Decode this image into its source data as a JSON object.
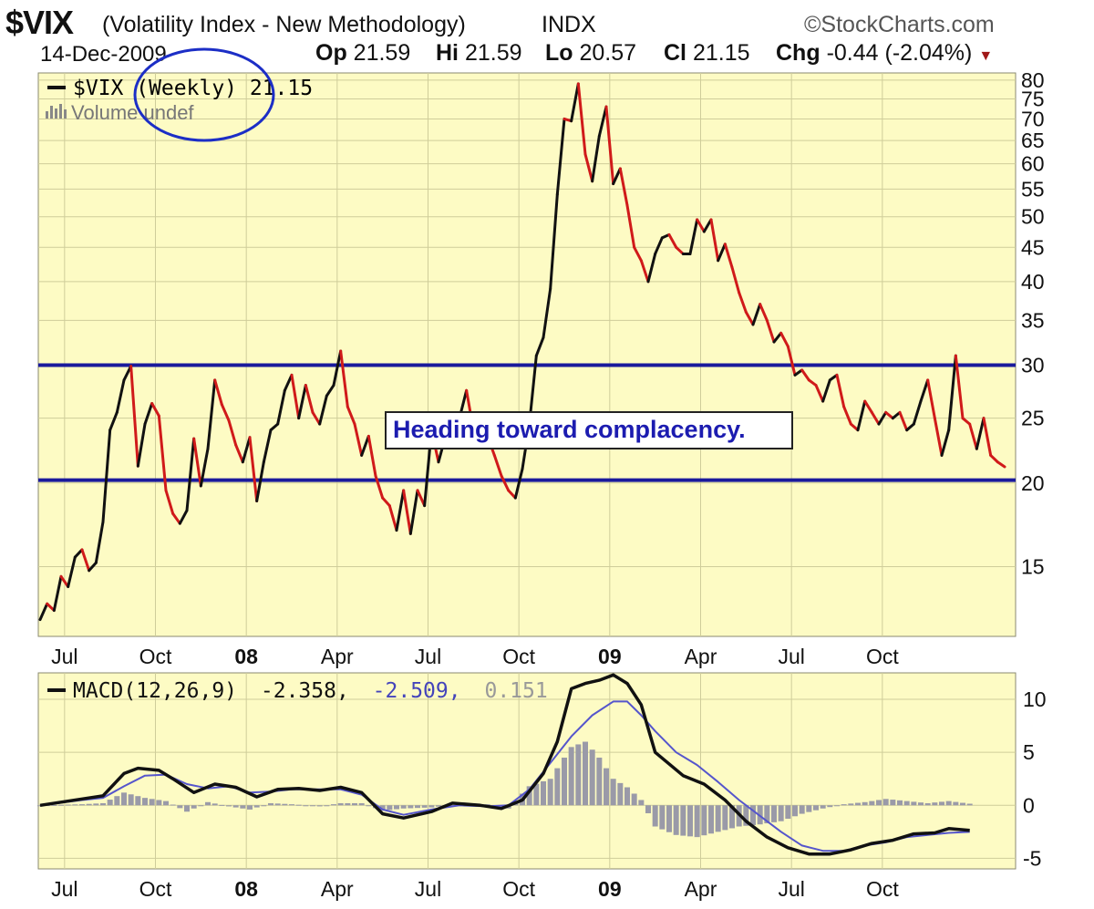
{
  "header": {
    "symbol": "$VIX",
    "full_name": "(Volatility Index - New Methodology)",
    "exchange": "INDX",
    "brand": "©StockCharts.com",
    "date": "14-Dec-2009",
    "open_label": "Op",
    "open_value": "21.59",
    "high_label": "Hi",
    "high_value": "21.59",
    "low_label": "Lo",
    "low_value": "20.57",
    "close_label": "Cl",
    "close_value": "21.15",
    "change_label": "Chg",
    "change_value": "-0.44 (-2.04%)",
    "change_arrow": "▼"
  },
  "colors": {
    "panel_bg": "#fdfbc4",
    "grid": "#cfcd9a",
    "up_line": "#111111",
    "down_line": "#d01a1a",
    "guide_line": "#1a1a9c",
    "annotation_text": "#1c1cb0",
    "circle": "#1c2ec6",
    "signal": "#5555cc",
    "histogram": "#9a9aa8"
  },
  "chart_data": [
    {
      "type": "line",
      "title": "$VIX (Volatility Index - New Methodology)",
      "legend": [
        {
          "text": "$VIX (Weekly) 21.15",
          "marker": "line",
          "color": "#111111"
        },
        {
          "text": "Volume undef",
          "marker": "bars",
          "color": "#777777"
        }
      ],
      "x_tick_labels": [
        {
          "label": "Jul",
          "t": 3.5,
          "bold": false
        },
        {
          "label": "Oct",
          "t": 16.5,
          "bold": false
        },
        {
          "label": "08",
          "t": 29.5,
          "bold": true
        },
        {
          "label": "Apr",
          "t": 42.5,
          "bold": false
        },
        {
          "label": "Jul",
          "t": 55.5,
          "bold": false
        },
        {
          "label": "Oct",
          "t": 68.5,
          "bold": false
        },
        {
          "label": "09",
          "t": 81.5,
          "bold": true
        },
        {
          "label": "Apr",
          "t": 94.5,
          "bold": false
        },
        {
          "label": "Jul",
          "t": 107.5,
          "bold": false
        },
        {
          "label": "Oct",
          "t": 120.5,
          "bold": false
        }
      ],
      "y_scale": "log",
      "ylim": [
        11.8,
        82
      ],
      "y_ticks": [
        15,
        20,
        25,
        30,
        35,
        40,
        45,
        50,
        55,
        60,
        65,
        70,
        75,
        80
      ],
      "grid": true,
      "legend_position": "top-left",
      "series": [
        {
          "values": [
            12.5,
            13.2,
            12.9,
            14.5,
            14.0,
            15.5,
            15.9,
            14.8,
            15.2,
            17.5,
            24.0,
            25.5,
            28.5,
            29.9,
            21.2,
            24.5,
            26.3,
            25.2,
            19.5,
            18.0,
            17.4,
            18.2,
            23.3,
            19.8,
            22.5,
            28.5,
            26.2,
            24.8,
            22.8,
            21.5,
            23.4,
            18.8,
            21.5,
            24.0,
            24.5,
            27.5,
            29.0,
            25.0,
            28.0,
            25.5,
            24.5,
            27.0,
            28.0,
            31.5,
            26.0,
            24.5,
            22.0,
            23.5,
            20.5,
            19.0,
            18.5,
            17.0,
            19.5,
            16.8,
            19.5,
            18.5,
            24.0,
            21.5,
            23.5,
            24.5,
            25.0,
            27.5,
            24.0,
            24.5,
            23.5,
            22.0,
            20.5,
            19.5,
            19.0,
            21.0,
            24.5,
            31.0,
            33.0,
            39.0,
            54.0,
            70.0,
            69.5,
            79.0,
            62.0,
            56.5,
            66.0,
            73.0,
            56.0,
            59.0,
            52.0,
            45.0,
            43.0,
            40.0,
            44.0,
            46.5,
            47.0,
            45.0,
            44.0,
            44.0,
            49.5,
            47.5,
            49.5,
            43.0,
            45.5,
            42.0,
            38.5,
            36.0,
            34.5,
            37.0,
            35.0,
            32.5,
            33.5,
            32.0,
            29.0,
            29.5,
            28.5,
            28.0,
            26.5,
            28.5,
            29.0,
            26.0,
            24.5,
            24.0,
            26.5,
            25.5,
            24.5,
            25.5,
            25.0,
            25.5,
            24.0,
            24.5,
            26.5,
            28.5,
            25.0,
            22.0,
            24.0,
            31.0,
            25.0,
            24.5,
            22.5,
            25.0,
            22.0,
            21.5,
            21.15
          ]
        }
      ],
      "annotations": [
        {
          "text": "Heading toward complacency."
        },
        {
          "text": "horizontal line",
          "y": 30
        },
        {
          "text": "horizontal line",
          "y": 20.2
        }
      ]
    },
    {
      "type": "line",
      "title": "",
      "legend": [
        {
          "text": "MACD(12,26,9)",
          "color": "#111111"
        },
        {
          "text": "-2.358,",
          "color": "#111111"
        },
        {
          "text": "-2.509,",
          "color": "#4444bb"
        },
        {
          "text": "0.151",
          "color": "#999999"
        }
      ],
      "x_tick_labels": [
        {
          "label": "Jul",
          "t": 3.5,
          "bold": false
        },
        {
          "label": "Oct",
          "t": 16.5,
          "bold": false
        },
        {
          "label": "08",
          "t": 29.5,
          "bold": true
        },
        {
          "label": "Apr",
          "t": 42.5,
          "bold": false
        },
        {
          "label": "Jul",
          "t": 55.5,
          "bold": false
        },
        {
          "label": "Oct",
          "t": 68.5,
          "bold": false
        },
        {
          "label": "09",
          "t": 81.5,
          "bold": true
        },
        {
          "label": "Apr",
          "t": 94.5,
          "bold": false
        },
        {
          "label": "Jul",
          "t": 107.5,
          "bold": false
        },
        {
          "label": "Oct",
          "t": 120.5,
          "bold": false
        }
      ],
      "ylim": [
        -6,
        12.5
      ],
      "y_ticks": [
        -5,
        0,
        5,
        10
      ],
      "grid": true,
      "series": [
        {
          "name": "MACD",
          "points": [
            [
              0,
              0
            ],
            [
              6,
              0.6
            ],
            [
              9,
              0.9
            ],
            [
              12,
              3.0
            ],
            [
              14,
              3.5
            ],
            [
              17,
              3.3
            ],
            [
              19,
              2.5
            ],
            [
              22,
              1.2
            ],
            [
              25,
              2.0
            ],
            [
              28,
              1.7
            ],
            [
              31,
              0.8
            ],
            [
              34,
              1.5
            ],
            [
              37,
              1.6
            ],
            [
              40,
              1.4
            ],
            [
              43,
              1.7
            ],
            [
              46,
              1.2
            ],
            [
              49,
              -0.8
            ],
            [
              52,
              -1.2
            ],
            [
              56,
              -0.6
            ],
            [
              59,
              0.2
            ],
            [
              63,
              0.0
            ],
            [
              66,
              -0.3
            ],
            [
              69,
              0.5
            ],
            [
              72,
              3.0
            ],
            [
              74,
              6.0
            ],
            [
              76,
              11.0
            ],
            [
              78,
              11.5
            ],
            [
              80,
              11.8
            ],
            [
              82,
              12.3
            ],
            [
              84,
              11.5
            ],
            [
              86,
              9.5
            ],
            [
              88,
              5.0
            ],
            [
              92,
              2.8
            ],
            [
              95,
              2.0
            ],
            [
              98,
              0.5
            ],
            [
              101,
              -1.5
            ],
            [
              104,
              -3.0
            ],
            [
              107,
              -4.0
            ],
            [
              110,
              -4.6
            ],
            [
              113,
              -4.6
            ],
            [
              116,
              -4.2
            ],
            [
              119,
              -3.6
            ],
            [
              122,
              -3.3
            ],
            [
              125,
              -2.7
            ],
            [
              128,
              -2.6
            ],
            [
              130,
              -2.2
            ],
            [
              133,
              -2.358
            ]
          ]
        },
        {
          "name": "Signal",
          "points": [
            [
              0,
              0
            ],
            [
              6,
              0.5
            ],
            [
              9,
              0.7
            ],
            [
              12,
              1.8
            ],
            [
              15,
              2.8
            ],
            [
              18,
              2.9
            ],
            [
              21,
              2.0
            ],
            [
              24,
              1.6
            ],
            [
              27,
              1.8
            ],
            [
              30,
              1.2
            ],
            [
              33,
              1.3
            ],
            [
              36,
              1.5
            ],
            [
              40,
              1.5
            ],
            [
              43,
              1.5
            ],
            [
              46,
              1.0
            ],
            [
              49,
              -0.4
            ],
            [
              52,
              -0.9
            ],
            [
              56,
              -0.4
            ],
            [
              60,
              0.0
            ],
            [
              64,
              -0.1
            ],
            [
              67,
              0.0
            ],
            [
              70,
              1.5
            ],
            [
              73,
              4.0
            ],
            [
              76,
              6.5
            ],
            [
              79,
              8.5
            ],
            [
              82,
              9.8
            ],
            [
              84,
              9.8
            ],
            [
              86,
              8.5
            ],
            [
              88,
              7.0
            ],
            [
              91,
              5.0
            ],
            [
              94,
              3.8
            ],
            [
              97,
              2.2
            ],
            [
              100,
              0.5
            ],
            [
              103,
              -1.0
            ],
            [
              106,
              -2.5
            ],
            [
              109,
              -3.8
            ],
            [
              112,
              -4.3
            ],
            [
              115,
              -4.3
            ],
            [
              118,
              -3.8
            ],
            [
              121,
              -3.5
            ],
            [
              124,
              -3.0
            ],
            [
              127,
              -2.8
            ],
            [
              130,
              -2.6
            ],
            [
              133,
              -2.509
            ]
          ]
        },
        {
          "name": "Histogram",
          "points": [
            [
              0,
              0
            ],
            [
              6,
              0.1
            ],
            [
              9,
              0.2
            ],
            [
              12,
              1.2
            ],
            [
              15,
              0.7
            ],
            [
              18,
              0.4
            ],
            [
              21,
              -0.6
            ],
            [
              24,
              0.3
            ],
            [
              27,
              -0.1
            ],
            [
              30,
              -0.4
            ],
            [
              33,
              0.2
            ],
            [
              36,
              0.1
            ],
            [
              40,
              -0.1
            ],
            [
              43,
              0.2
            ],
            [
              46,
              0.2
            ],
            [
              49,
              -0.5
            ],
            [
              52,
              -0.3
            ],
            [
              56,
              -0.2
            ],
            [
              60,
              0.1
            ],
            [
              64,
              0.1
            ],
            [
              67,
              -0.3
            ],
            [
              70,
              1.8
            ],
            [
              73,
              2.5
            ],
            [
              76,
              5.5
            ],
            [
              78,
              6.0
            ],
            [
              80,
              4.5
            ],
            [
              82,
              2.5
            ],
            [
              84,
              1.7
            ],
            [
              86,
              0.5
            ],
            [
              88,
              -2.0
            ],
            [
              91,
              -2.8
            ],
            [
              94,
              -3.0
            ],
            [
              97,
              -2.5
            ],
            [
              100,
              -2.0
            ],
            [
              103,
              -1.8
            ],
            [
              106,
              -1.5
            ],
            [
              109,
              -0.8
            ],
            [
              112,
              -0.3
            ],
            [
              115,
              0.1
            ],
            [
              118,
              0.3
            ],
            [
              121,
              0.6
            ],
            [
              124,
              0.4
            ],
            [
              127,
              0.2
            ],
            [
              130,
              0.4
            ],
            [
              133,
              0.151
            ]
          ]
        }
      ]
    }
  ]
}
